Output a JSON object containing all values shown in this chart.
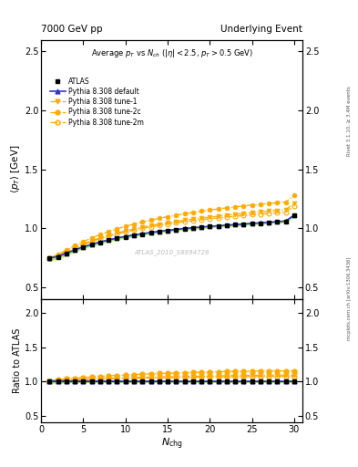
{
  "title_left": "7000 GeV pp",
  "title_right": "Underlying Event",
  "xlabel": "N_{chg}",
  "ylabel_main": "\\langle p_{T} \\rangle [GeV]",
  "ylabel_ratio": "Ratio to ATLAS",
  "right_label_top": "Rivet 3.1.10, ≥ 3.4M events",
  "right_label_bot": "mcplots.cern.ch [arXiv:1306.3436]",
  "watermark": "ATLAS_2010_S8894728",
  "ylim_main": [
    0.4,
    2.6
  ],
  "ylim_ratio": [
    0.4,
    2.2
  ],
  "xlim": [
    0,
    31
  ],
  "nch": [
    1,
    2,
    3,
    4,
    5,
    6,
    7,
    8,
    9,
    10,
    11,
    12,
    13,
    14,
    15,
    16,
    17,
    18,
    19,
    20,
    21,
    22,
    23,
    24,
    25,
    26,
    27,
    28,
    29,
    30
  ],
  "atlas_y": [
    0.745,
    0.757,
    0.786,
    0.815,
    0.84,
    0.862,
    0.882,
    0.899,
    0.915,
    0.929,
    0.941,
    0.952,
    0.963,
    0.972,
    0.981,
    0.989,
    0.997,
    1.003,
    1.009,
    1.015,
    1.02,
    1.025,
    1.03,
    1.035,
    1.04,
    1.045,
    1.05,
    1.055,
    1.06,
    1.11
  ],
  "atlas_err": [
    0.012,
    0.01,
    0.008,
    0.007,
    0.006,
    0.006,
    0.005,
    0.005,
    0.005,
    0.005,
    0.004,
    0.004,
    0.004,
    0.004,
    0.004,
    0.004,
    0.004,
    0.004,
    0.004,
    0.004,
    0.004,
    0.004,
    0.004,
    0.004,
    0.004,
    0.004,
    0.004,
    0.004,
    0.004,
    0.005
  ],
  "default_y": [
    0.748,
    0.762,
    0.79,
    0.818,
    0.843,
    0.865,
    0.885,
    0.902,
    0.918,
    0.932,
    0.944,
    0.955,
    0.965,
    0.975,
    0.983,
    0.991,
    0.999,
    1.005,
    1.011,
    1.017,
    1.022,
    1.027,
    1.032,
    1.037,
    1.042,
    1.047,
    1.052,
    1.057,
    1.062,
    1.112
  ],
  "tune1_y": [
    0.748,
    0.77,
    0.805,
    0.838,
    0.868,
    0.895,
    0.92,
    0.942,
    0.961,
    0.979,
    0.995,
    1.01,
    1.024,
    1.037,
    1.048,
    1.059,
    1.069,
    1.079,
    1.088,
    1.096,
    1.104,
    1.112,
    1.119,
    1.126,
    1.133,
    1.14,
    1.147,
    1.153,
    1.159,
    1.21
  ],
  "tune2c_y": [
    0.748,
    0.778,
    0.817,
    0.854,
    0.888,
    0.919,
    0.947,
    0.973,
    0.996,
    1.017,
    1.036,
    1.054,
    1.07,
    1.085,
    1.099,
    1.112,
    1.124,
    1.135,
    1.146,
    1.156,
    1.165,
    1.174,
    1.182,
    1.19,
    1.197,
    1.204,
    1.211,
    1.217,
    1.223,
    1.28
  ],
  "tune2m_y": [
    0.748,
    0.768,
    0.802,
    0.833,
    0.862,
    0.888,
    0.912,
    0.933,
    0.952,
    0.969,
    0.985,
    1.0,
    1.013,
    1.025,
    1.036,
    1.047,
    1.056,
    1.065,
    1.074,
    1.082,
    1.089,
    1.096,
    1.103,
    1.109,
    1.115,
    1.121,
    1.127,
    1.133,
    1.138,
    1.188
  ],
  "color_atlas": "#000000",
  "color_default": "#3333cc",
  "color_tune": "#ffaa00",
  "band_color_green": "#90ee90",
  "band_color_yellow": "#ffff80",
  "yticks_main": [
    0.5,
    1.0,
    1.5,
    2.0,
    2.5
  ],
  "yticks_ratio": [
    0.5,
    1.0,
    1.5,
    2.0
  ]
}
